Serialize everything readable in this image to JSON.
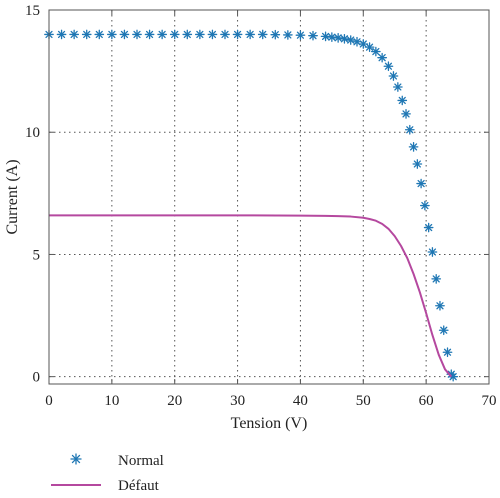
{
  "chart_data": {
    "type": "scatter",
    "title": "",
    "xlabel": "Tension (V)",
    "ylabel": "Current (A)",
    "xlim": [
      0,
      70
    ],
    "ylim": [
      -0.3,
      15
    ],
    "xticks": [
      0,
      10,
      20,
      30,
      40,
      50,
      60,
      70
    ],
    "yticks": [
      0,
      5,
      10,
      15
    ],
    "grid": true,
    "legend_position": "bottom-left, below plot",
    "series": [
      {
        "name": "Normal",
        "style": "markers",
        "marker": "asterisk",
        "color": "#1f77b4",
        "x": [
          0,
          2,
          4,
          6,
          8,
          10,
          12,
          14,
          16,
          18,
          20,
          22,
          24,
          26,
          28,
          30,
          32,
          34,
          36,
          38,
          40,
          42,
          44,
          45,
          46,
          47,
          48,
          49,
          50,
          51,
          52,
          53,
          54,
          54.8,
          55.5,
          56.2,
          56.8,
          57.4,
          58.0,
          58.6,
          59.2,
          59.8,
          60.4,
          61.0,
          61.6,
          62.2,
          62.8,
          63.4,
          64.0,
          64.3
        ],
        "y": [
          14.0,
          14.0,
          14.0,
          14.0,
          14.0,
          14.0,
          14.0,
          14.0,
          14.0,
          14.0,
          14.0,
          14.0,
          14.0,
          14.0,
          14.0,
          14.0,
          14.0,
          14.0,
          13.99,
          13.98,
          13.97,
          13.95,
          13.92,
          13.89,
          13.86,
          13.82,
          13.77,
          13.7,
          13.61,
          13.48,
          13.3,
          13.05,
          12.7,
          12.3,
          11.85,
          11.3,
          10.75,
          10.1,
          9.4,
          8.7,
          7.9,
          7.0,
          6.1,
          5.1,
          4.0,
          2.9,
          1.9,
          1.0,
          0.1,
          0
        ]
      },
      {
        "name": "Défaut",
        "style": "line",
        "color": "#b5489f",
        "x": [
          0,
          10,
          20,
          30,
          40,
          44,
          46,
          48,
          50,
          51,
          52,
          53,
          54,
          55,
          56,
          57,
          58,
          59,
          60,
          61,
          62,
          63,
          64
        ],
        "y": [
          6.6,
          6.6,
          6.6,
          6.6,
          6.59,
          6.58,
          6.57,
          6.55,
          6.5,
          6.45,
          6.38,
          6.25,
          6.05,
          5.75,
          5.35,
          4.85,
          4.2,
          3.45,
          2.6,
          1.7,
          0.9,
          0.3,
          0
        ]
      }
    ]
  }
}
